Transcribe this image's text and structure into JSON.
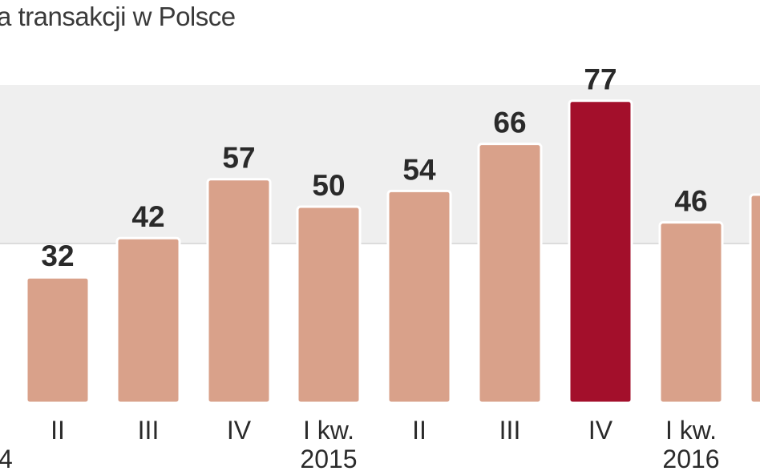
{
  "chart_data": {
    "type": "bar",
    "title": "a transakcji w Polsce",
    "categories": [
      "",
      "II",
      "III",
      "IV",
      "I kw.",
      "II",
      "III",
      "IV",
      "I kw.",
      ""
    ],
    "year_labels": [
      "4",
      "",
      "",
      "",
      "2015",
      "",
      "",
      "",
      "2016",
      ""
    ],
    "values": [
      null,
      32,
      42,
      57,
      50,
      54,
      66,
      77,
      46,
      null
    ],
    "value_labels": [
      "",
      "32",
      "42",
      "57",
      "50",
      "54",
      "66",
      "77",
      "46",
      ""
    ],
    "highlight_index": 7,
    "ylim": [
      0,
      100
    ],
    "grid": true,
    "colors": {
      "bar": "#d9a18a",
      "highlight": "#a30f2b",
      "band": "#efefef",
      "grid": "#d4d4d4"
    }
  }
}
